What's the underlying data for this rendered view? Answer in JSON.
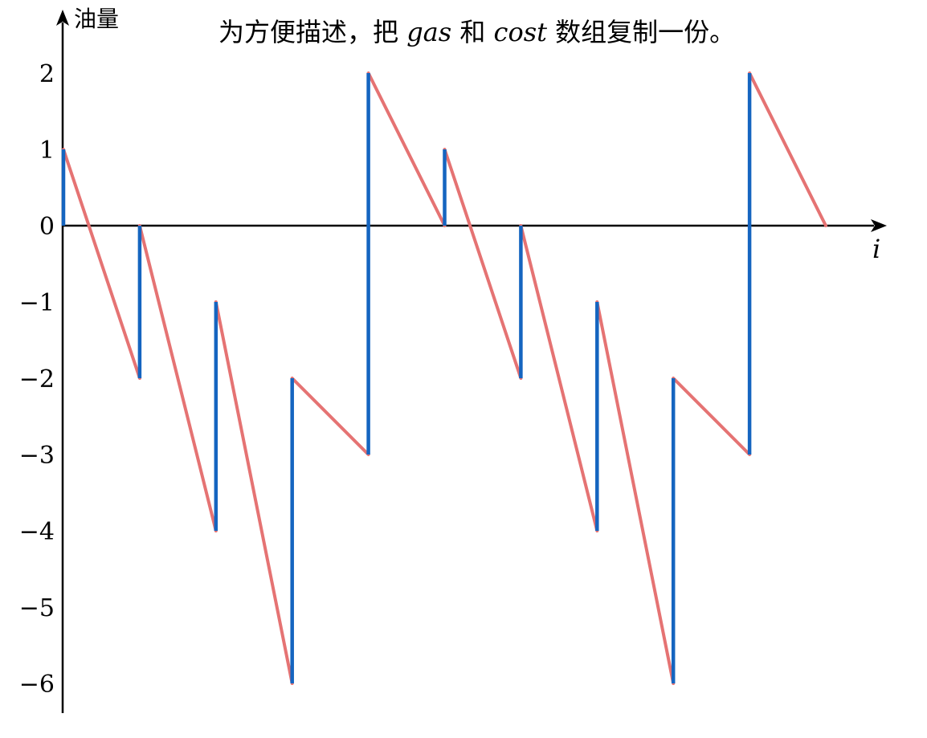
{
  "chart_data": {
    "type": "line",
    "title": {
      "part1": "为方便描述，把 ",
      "var1": "gas",
      "part2": " 和 ",
      "var2": "cost",
      "part3": " 数组复制一份。"
    },
    "xlabel": "i",
    "ylabel": "油量",
    "ylim": [
      -6,
      2
    ],
    "yticks": [
      2,
      1,
      0,
      -1,
      -2,
      -3,
      -4,
      -5,
      -6
    ],
    "ytick_labels": [
      "2",
      "1",
      "0",
      "−1",
      "−2",
      "−3",
      "−4",
      "−5",
      "−6"
    ],
    "x": [
      0,
      1,
      2,
      3,
      4,
      5,
      6,
      7,
      8,
      9,
      10
    ],
    "series": [
      {
        "role": "gas refuel (vertical jumps)",
        "color": "#1565c0",
        "segments": [
          {
            "x": 0,
            "from": 0,
            "to": 1
          },
          {
            "x": 1,
            "from": -2,
            "to": 0
          },
          {
            "x": 2,
            "from": -4,
            "to": -1
          },
          {
            "x": 3,
            "from": -6,
            "to": -2
          },
          {
            "x": 4,
            "from": -3,
            "to": 2
          },
          {
            "x": 5,
            "from": 0,
            "to": 1
          },
          {
            "x": 6,
            "from": -2,
            "to": 0
          },
          {
            "x": 7,
            "from": -4,
            "to": -1
          },
          {
            "x": 8,
            "from": -6,
            "to": -2
          },
          {
            "x": 9,
            "from": -3,
            "to": 2
          }
        ]
      },
      {
        "role": "cost consumption (diagonal drops)",
        "color": "#e57373",
        "segments": [
          {
            "x0": 0,
            "y0": 1,
            "x1": 1,
            "y1": -2
          },
          {
            "x0": 1,
            "y0": 0,
            "x1": 2,
            "y1": -4
          },
          {
            "x0": 2,
            "y0": -1,
            "x1": 3,
            "y1": -6
          },
          {
            "x0": 3,
            "y0": -2,
            "x1": 4,
            "y1": -3
          },
          {
            "x0": 4,
            "y0": 2,
            "x1": 5,
            "y1": 0
          },
          {
            "x0": 5,
            "y0": 1,
            "x1": 6,
            "y1": -2
          },
          {
            "x0": 6,
            "y0": 0,
            "x1": 7,
            "y1": -4
          },
          {
            "x0": 7,
            "y0": -1,
            "x1": 8,
            "y1": -6
          },
          {
            "x0": 8,
            "y0": -2,
            "x1": 9,
            "y1": -3
          },
          {
            "x0": 9,
            "y0": 2,
            "x1": 10,
            "y1": 0
          }
        ]
      }
    ],
    "grid": false
  }
}
